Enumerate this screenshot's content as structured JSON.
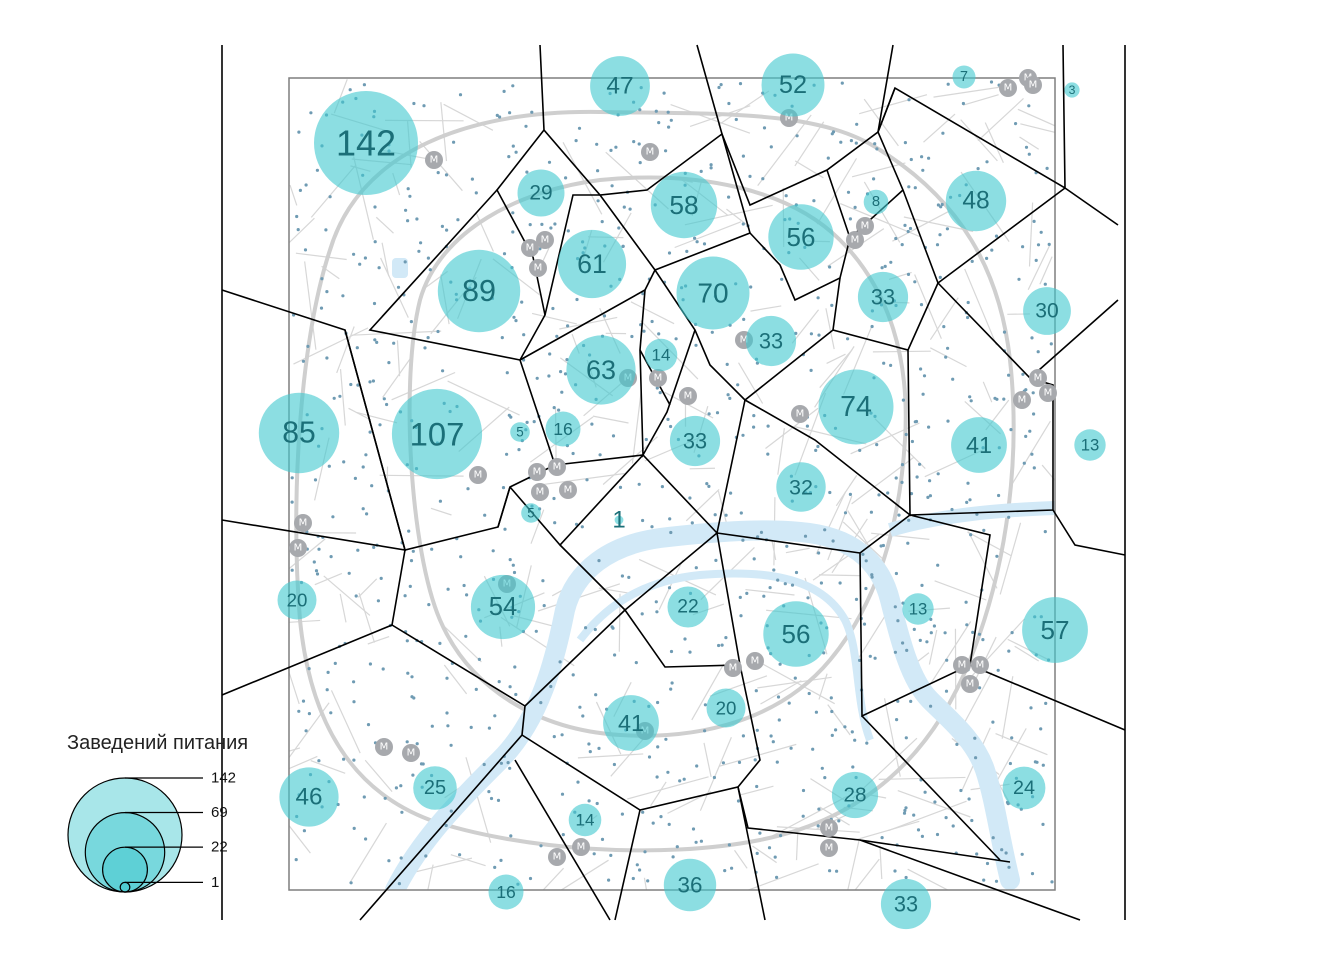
{
  "legend": {
    "title": "Заведений питания",
    "values": [
      142,
      69,
      22,
      1
    ],
    "labels": [
      "142",
      "69",
      "22",
      "1"
    ]
  },
  "colors": {
    "bubble": "#3fc8cf",
    "bubble_text": "#1b6f78",
    "river": "#d2e9f7",
    "streets": "#d4d4d4",
    "points": "#6f9bb3",
    "metro": "#a7a9ad",
    "voronoi": "#000000",
    "frame": "#7f7f7f"
  },
  "metro_label": "M",
  "chart_data": {
    "type": "proportional-symbol map",
    "legend_title": "Заведений питания",
    "counts": [
      142,
      47,
      52,
      7,
      3,
      29,
      58,
      8,
      48,
      56,
      61,
      89,
      70,
      33,
      30,
      63,
      14,
      33,
      74,
      85,
      107,
      16,
      5,
      33,
      41,
      13,
      32,
      5,
      1,
      20,
      54,
      22,
      56,
      13,
      57,
      20,
      41,
      46,
      25,
      28,
      24,
      14,
      16,
      36,
      33
    ]
  }
}
